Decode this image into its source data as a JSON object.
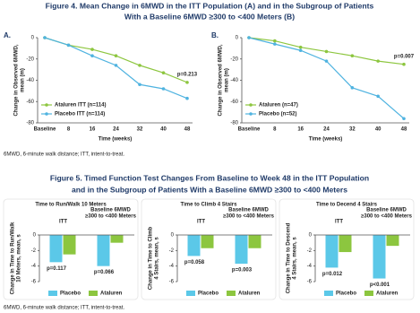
{
  "figure4": {
    "title": [
      "Figure 4. Mean Change in 6MWD in the ITT Population (A) and in the Subgroup of Patients",
      "With a Baseline 6MWD ≥300 to <400 Meters (B)"
    ],
    "footnote": "6MWD, 6-minute walk distance; ITT, intent-to-treat."
  },
  "figure5": {
    "title": [
      "Figure 5. Timed Function Test Changes From Baseline to Week 48 in the ITT Population",
      "and in the Subgroup of Patients With a Baseline 6MWD ≥300 to <400 Meters"
    ],
    "footnote": "6MWD, 6-minute walk distance; ITT, intent-to-treat."
  },
  "chart_data": [
    {
      "type": "line",
      "label": "A.",
      "categories": [
        "Baseline",
        "8",
        "16",
        "24",
        "32",
        "40",
        "48"
      ],
      "x_label": "Time (weeks)",
      "y_label": [
        "Change in Observed 6MWD,",
        "mean (m)"
      ],
      "ylim": [
        -80,
        0
      ],
      "yticks": [
        0,
        -20,
        -40,
        -60,
        -80
      ],
      "annotation": "p=0.213",
      "series": [
        {
          "name": "Ataluren ITT (n=114)",
          "color": "#8dc63f",
          "values": [
            0,
            -7,
            -11,
            -17,
            -26,
            -33,
            -42
          ]
        },
        {
          "name": "Placebo ITT (n=114)",
          "color": "#4fb3e0",
          "values": [
            0,
            -7,
            -17,
            -26,
            -44,
            -48,
            -57
          ]
        }
      ]
    },
    {
      "type": "line",
      "label": "B.",
      "categories": [
        "Baseline",
        "8",
        "16",
        "24",
        "32",
        "40",
        "48"
      ],
      "x_label": "Time (weeks)",
      "y_label": [
        "Change in Observed 6MWD,",
        "mean (m)"
      ],
      "ylim": [
        -80,
        0
      ],
      "yticks": [
        0,
        -20,
        -40,
        -60,
        -80
      ],
      "annotation": "p=0.007",
      "series": [
        {
          "name": "Ataluren (n=47)",
          "color": "#8dc63f",
          "values": [
            0,
            -3,
            -9,
            -13,
            -17,
            -22,
            -25
          ]
        },
        {
          "name": "Placebo (n=52)",
          "color": "#4fb3e0",
          "values": [
            0,
            -6,
            -12,
            -22,
            -47,
            -55,
            -76
          ]
        }
      ]
    },
    {
      "type": "bar",
      "title": "Time to Run/Walk 10 Meters",
      "y_label": [
        "Change in Time to Run/Walk",
        "10 Meters, mean, s"
      ],
      "groups": [
        [
          "ITT"
        ],
        [
          "Baseline 6MWD",
          "≥300 to <400 Meters"
        ]
      ],
      "annotations": [
        "p=0.117",
        "p=0.066"
      ],
      "ylim": [
        -6,
        0
      ],
      "yticks": [
        0,
        -2,
        -4,
        -6
      ],
      "series": [
        {
          "name": "Placebo",
          "color": "#5bc8e8",
          "values": [
            -3.5,
            -4.0
          ]
        },
        {
          "name": "Ataluren",
          "color": "#8cc63f",
          "values": [
            -2.5,
            -1.0
          ]
        }
      ]
    },
    {
      "type": "bar",
      "title": "Time to Climb 4 Stairs",
      "y_label": [
        "Change in Time to Climb",
        "4 Stairs, mean, s"
      ],
      "groups": [
        [
          "ITT"
        ],
        [
          "Baseline 6MWD",
          "≥300 to <400 Meters"
        ]
      ],
      "annotations": [
        "p=0.058",
        "p=0.003"
      ],
      "ylim": [
        -6,
        0
      ],
      "yticks": [
        0,
        -2,
        -4,
        -6
      ],
      "series": [
        {
          "name": "Placebo",
          "color": "#5bc8e8",
          "values": [
            -2.7,
            -3.7
          ]
        },
        {
          "name": "Ataluren",
          "color": "#8cc63f",
          "values": [
            -1.7,
            -1.7
          ]
        }
      ]
    },
    {
      "type": "bar",
      "title": "Time to Decend 4 Stairs",
      "y_label": [
        "Change in Time to Descend",
        "4 Stairs, mean, s"
      ],
      "groups": [
        [
          "ITT"
        ],
        [
          "Baseline 6MWD",
          "≥300 to <400 Meters"
        ]
      ],
      "annotations": [
        "p=0.012",
        "p<0.001"
      ],
      "ylim": [
        -6,
        0
      ],
      "yticks": [
        0,
        -2,
        -4,
        -6
      ],
      "series": [
        {
          "name": "Placebo",
          "color": "#5bc8e8",
          "values": [
            -4.2,
            -5.6
          ]
        },
        {
          "name": "Ataluren",
          "color": "#8cc63f",
          "values": [
            -2.2,
            -1.4
          ]
        }
      ]
    }
  ]
}
